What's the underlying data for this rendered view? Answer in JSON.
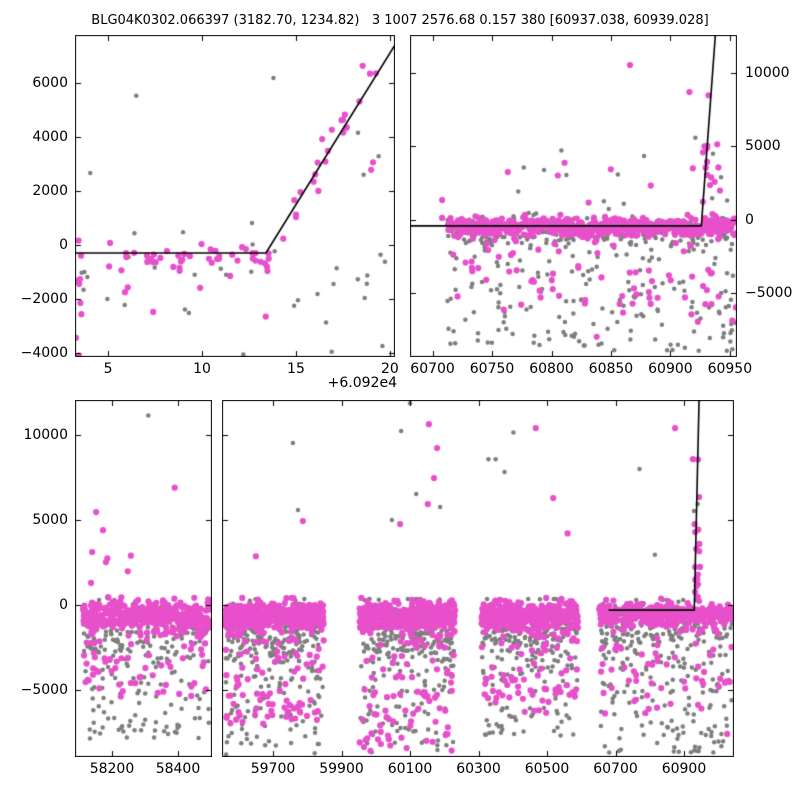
{
  "title": "BLG04K0302.066397 (3182.70, 1234.82)   3 1007 2576.68 0.157 380 [60937.038, 60939.028]",
  "colors": {
    "pink": "#e850cb",
    "gray": "#7f7f7f",
    "line": "#000000",
    "background": "#ffffff"
  },
  "chart_data": [
    {
      "id": "top_left_zoom",
      "type": "scatter",
      "xlim": [
        3.24,
        20.27
      ],
      "ylim": [
        -4150,
        7770
      ],
      "x_offset_label": "+6.092e4",
      "xticks": {
        "values": [
          5,
          10,
          15,
          20
        ],
        "labels": [
          "5",
          "10",
          "15",
          "20"
        ]
      },
      "yticks": {
        "values": [
          -4000,
          -2000,
          0,
          2000,
          4000,
          6000
        ],
        "labels": [
          "−4000",
          "−2000",
          "0",
          "2000",
          "4000",
          "6000"
        ],
        "side": "left"
      },
      "model_line": [
        [
          3.24,
          -300
        ],
        [
          13.4,
          -300
        ],
        [
          20.27,
          7400
        ]
      ],
      "clusters": [
        {
          "color": "gray",
          "n": 26,
          "x_range": [
            3.5,
            20.1
          ],
          "band": {
            "center": -800,
            "sd": 950,
            "min": -3950,
            "max": 1100
          },
          "tail": {
            "frac": 0.1,
            "min": -4100,
            "max": -1600
          }
        },
        {
          "color": "pink",
          "n": 48,
          "x_range": [
            3.4,
            13.6
          ],
          "band": {
            "center": -480,
            "sd": 300,
            "min": -1150,
            "max": 250
          },
          "tail": {
            "frac": 0.1,
            "min": -2800,
            "max": -1100
          }
        },
        {
          "color": "pink",
          "n": 8,
          "x_range": [
            3.27,
            3.6
          ],
          "band": {
            "center": -2000,
            "sd": 1400,
            "min": -4100,
            "max": -400
          }
        },
        {
          "color": "pink",
          "n": 20,
          "x_range": [
            13.6,
            19.4
          ],
          "trend": {
            "x0": 13.4,
            "y0": -300,
            "slope": 1120,
            "sd": 480
          }
        }
      ],
      "outliers": {
        "gray": [
          [
            6.5,
            5520
          ],
          [
            13.8,
            6180
          ],
          [
            4.05,
            2660
          ],
          [
            9.3,
            -2520
          ],
          [
            12.2,
            -4060
          ],
          [
            16.6,
            -2870
          ],
          [
            16.9,
            -3960
          ],
          [
            19.4,
            3280
          ],
          [
            19.6,
            -3740
          ],
          [
            17.0,
            -1450
          ],
          [
            14.9,
            -2250
          ],
          [
            11.0,
            -880
          ],
          [
            18.3,
            4150
          ],
          [
            18.6,
            2600
          ]
        ],
        "pink": [
          [
            18.55,
            6630
          ],
          [
            5.9,
            -1750
          ],
          [
            7.4,
            -2480
          ],
          [
            9.9,
            -1590
          ],
          [
            17.6,
            4820
          ],
          [
            17.5,
            4630
          ],
          [
            19.0,
            2780
          ],
          [
            19.1,
            3060
          ]
        ]
      }
    },
    {
      "id": "top_right_season",
      "type": "scatter",
      "xlim": [
        60681,
        60956
      ],
      "ylim": [
        -9320,
        12580
      ],
      "xticks": {
        "values": [
          60700,
          60750,
          60800,
          60850,
          60900,
          60950
        ],
        "labels": [
          "60700",
          "60750",
          "60800",
          "60850",
          "60900",
          "60950"
        ]
      },
      "yticks": {
        "values": [
          -5000,
          0,
          5000,
          10000
        ],
        "labels": [
          "−5000",
          "0",
          "5000",
          "10000"
        ],
        "side": "right"
      },
      "model_line": [
        [
          60681,
          -400
        ],
        [
          60926,
          -400
        ],
        [
          60937.8,
          12580
        ]
      ],
      "clusters": [
        {
          "color": "gray",
          "n": 400,
          "x_range": [
            60712,
            60956
          ],
          "band": {
            "center": -800,
            "sd": 550,
            "min": -2500,
            "max": 800
          },
          "tail": {
            "frac": 0.42,
            "min": -8900,
            "max": -600
          }
        },
        {
          "color": "gray",
          "n": 14,
          "x_range": [
            60762,
            60950
          ],
          "uniform": [
            600,
            4800
          ]
        },
        {
          "color": "pink",
          "n": 640,
          "x_range": [
            60713,
            60956
          ],
          "band": {
            "center": -470,
            "sd": 300,
            "min": -1400,
            "max": 350
          },
          "tail": {
            "frac": 0.13,
            "min": -7000,
            "max": -500
          }
        },
        {
          "color": "pink",
          "n": 20,
          "x_range": [
            60926,
            60942
          ],
          "uniform": [
            -400,
            5200
          ]
        },
        {
          "color": "pink",
          "n": 6,
          "x_range": [
            60750,
            60920
          ],
          "uniform": [
            800,
            4200
          ]
        }
      ],
      "outliers": {
        "gray": [
          [
            60921,
            5590
          ]
        ],
        "pink": [
          [
            60866,
            10540
          ],
          [
            60916,
            8700
          ],
          [
            60932,
            8480
          ],
          [
            60811,
            3890
          ],
          [
            60708,
            1350
          ],
          [
            60708,
            140
          ],
          [
            60733,
            -3260
          ],
          [
            60838,
            -7950
          ],
          [
            60721,
            -5200
          ]
        ]
      }
    },
    {
      "id": "bottom_full_lightcurve",
      "type": "scatter-broken-axis",
      "ylim": [
        -8940,
        12060
      ],
      "yticks": {
        "values": [
          -5000,
          0,
          5000,
          10000
        ],
        "labels": [
          "−5000",
          "0",
          "5000",
          "10000"
        ],
        "side": "left"
      },
      "segments": [
        {
          "id": "seg_early",
          "xlim": [
            58088,
            58503
          ],
          "xticks": {
            "values": [
              58200,
              58400
            ],
            "labels": [
              "58200",
              "58400"
            ]
          },
          "model_line": null,
          "clusters": [
            {
              "color": "gray",
              "n": 260,
              "x_range": [
                58115,
                58495
              ],
              "band": {
                "center": -1500,
                "sd": 900,
                "min": -4500,
                "max": 300
              },
              "tail": {
                "frac": 0.45,
                "min": -7900,
                "max": -500
              }
            },
            {
              "color": "pink",
              "n": 430,
              "x_range": [
                58112,
                58497
              ],
              "band": {
                "center": -620,
                "sd": 430,
                "min": -2500,
                "max": 450
              },
              "tail": {
                "frac": 0.15,
                "min": -5400,
                "max": -600
              }
            },
            {
              "color": "pink",
              "n": 5,
              "x_range": [
                58125,
                58260
              ],
              "uniform": [
                1200,
                3300
              ]
            }
          ],
          "outliers": {
            "gray": [
              [
                58310,
                11150
              ]
            ],
            "pink": [
              [
                58152,
                5470
              ],
              [
                58173,
                4400
              ],
              [
                58390,
                6900
              ],
              [
                58140,
                3120
              ]
            ]
          }
        },
        {
          "id": "seg_recent",
          "xlim": [
            59551,
            61046
          ],
          "xticks": {
            "values": [
              59700,
              59900,
              60100,
              60300,
              60500,
              60700,
              60900
            ],
            "labels": [
              "59700",
              "59900",
              "60100",
              "60300",
              "60500",
              "60700",
              "60900"
            ]
          },
          "model_line": [
            [
              60680,
              -300
            ],
            [
              60930,
              -300
            ],
            [
              60944,
              12060
            ]
          ],
          "clusters": [
            {
              "color": "gray",
              "n": 300,
              "x_range": [
                59560,
                59845
              ],
              "band": {
                "center": -1500,
                "sd": 900,
                "min": -4800,
                "max": 350
              },
              "tail": {
                "frac": 0.48,
                "min": -8800,
                "max": -500
              }
            },
            {
              "color": "gray",
              "n": 300,
              "x_range": [
                59955,
                60230
              ],
              "band": {
                "center": -1500,
                "sd": 950,
                "min": -5000,
                "max": 350
              },
              "tail": {
                "frac": 0.48,
                "min": -8900,
                "max": -500
              }
            },
            {
              "color": "gray",
              "n": 270,
              "x_range": [
                60310,
                60590
              ],
              "band": {
                "center": -1400,
                "sd": 900,
                "min": -4600,
                "max": 350
              },
              "tail": {
                "frac": 0.44,
                "min": -7700,
                "max": -500
              }
            },
            {
              "color": "gray",
              "n": 300,
              "x_range": [
                60655,
                61040
              ],
              "band": {
                "center": -1500,
                "sd": 950,
                "min": -4800,
                "max": 300
              },
              "tail": {
                "frac": 0.5,
                "min": -8700,
                "max": -400
              }
            },
            {
              "color": "pink",
              "n": 520,
              "x_range": [
                59558,
                59848
              ],
              "band": {
                "center": -650,
                "sd": 420,
                "min": -2500,
                "max": 420
              },
              "tail": {
                "frac": 0.17,
                "min": -7000,
                "max": -600
              }
            },
            {
              "color": "pink",
              "n": 520,
              "x_range": [
                59952,
                60232
              ],
              "band": {
                "center": -680,
                "sd": 430,
                "min": -2600,
                "max": 420
              },
              "tail": {
                "frac": 0.2,
                "min": -8600,
                "max": -600
              }
            },
            {
              "color": "pink",
              "n": 470,
              "x_range": [
                60308,
                60592
              ],
              "band": {
                "center": -640,
                "sd": 400,
                "min": -2400,
                "max": 420
              },
              "tail": {
                "frac": 0.15,
                "min": -6600,
                "max": -600
              }
            },
            {
              "color": "pink",
              "n": 430,
              "x_range": [
                60652,
                61042
              ],
              "band": {
                "center": -580,
                "sd": 330,
                "min": -2200,
                "max": 380
              },
              "tail": {
                "frac": 0.16,
                "min": -6500,
                "max": -500
              }
            },
            {
              "color": "pink",
              "n": 16,
              "x_range": [
                60930,
                60948
              ],
              "uniform": [
                -350,
                5200
              ]
            }
          ],
          "outliers": {
            "gray": [
              [
                60100,
                11870
              ],
              [
                60074,
                10230
              ],
              [
                59758,
                9530
              ],
              [
                59773,
                5590
              ],
              [
                60118,
                6530
              ],
              [
                60188,
                5760
              ],
              [
                60047,
                5000
              ],
              [
                60376,
                7820
              ],
              [
                60329,
                8580
              ],
              [
                60350,
                8580
              ],
              [
                60402,
                10150
              ],
              [
                60770,
                8000
              ],
              [
                60940,
                5940
              ],
              [
                60929,
                5530
              ],
              [
                60815,
                2950
              ]
            ],
            "pink": [
              [
                60155,
                10640
              ],
              [
                60179,
                9230
              ],
              [
                60170,
                7470
              ],
              [
                60152,
                5940
              ],
              [
                60071,
                4760
              ],
              [
                60467,
                10410
              ],
              [
                60874,
                10400
              ],
              [
                60926,
                8580
              ],
              [
                60941,
                8560
              ],
              [
                60944,
                6350
              ],
              [
                61026,
                -7580
              ],
              [
                60518,
                6290
              ],
              [
                60560,
                4210
              ],
              [
                59787,
                4940
              ],
              [
                59650,
                2870
              ]
            ]
          }
        }
      ]
    }
  ]
}
